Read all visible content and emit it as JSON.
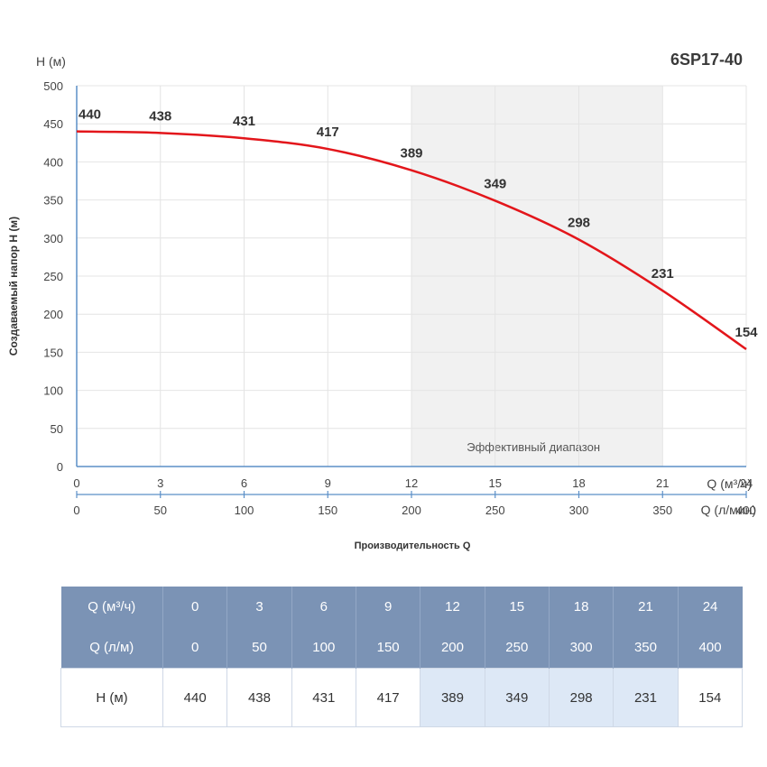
{
  "chart_data": {
    "type": "line",
    "title": "6SP17-40",
    "ylabel": "Создаваемый напор H (м)",
    "ylabel_top": "H (м)",
    "xlabel": "Производительность Q",
    "x_unit_primary": "Q (м³/ч)",
    "x_unit_secondary": "Q (л/мин)",
    "x": [
      0,
      3,
      6,
      9,
      12,
      15,
      18,
      21,
      24
    ],
    "x_secondary": [
      0,
      50,
      100,
      150,
      200,
      250,
      300,
      350,
      400
    ],
    "xlim": [
      0,
      24
    ],
    "ylim": [
      0,
      500
    ],
    "yticks": [
      0,
      50,
      100,
      150,
      200,
      250,
      300,
      350,
      400,
      450,
      500
    ],
    "grid": true,
    "efficient_range": {
      "from": 12,
      "to": 21,
      "label": "Эффективный диапазон"
    },
    "series": [
      {
        "values": [
          440,
          438,
          431,
          417,
          389,
          349,
          298,
          231,
          154
        ],
        "color": "#e3161b"
      }
    ]
  },
  "table": {
    "rows": [
      {
        "label": "Q (м³/ч)",
        "values": [
          "0",
          "3",
          "6",
          "9",
          "12",
          "15",
          "18",
          "21",
          "24"
        ]
      },
      {
        "label": "Q (л/м)",
        "values": [
          "0",
          "50",
          "100",
          "150",
          "200",
          "250",
          "300",
          "350",
          "400"
        ]
      },
      {
        "label": "H (м)",
        "values": [
          "440",
          "438",
          "431",
          "417",
          "389",
          "349",
          "298",
          "231",
          "154"
        ]
      }
    ],
    "highlight_columns": [
      4,
      5,
      6,
      7
    ]
  },
  "colors": {
    "curve": "#e3161b",
    "axis": "#5b8fc7",
    "grid": "#e4e4e4",
    "band": "#f1f1f1",
    "table_header": "#7b93b5",
    "table_highlight": "#dde8f6"
  }
}
